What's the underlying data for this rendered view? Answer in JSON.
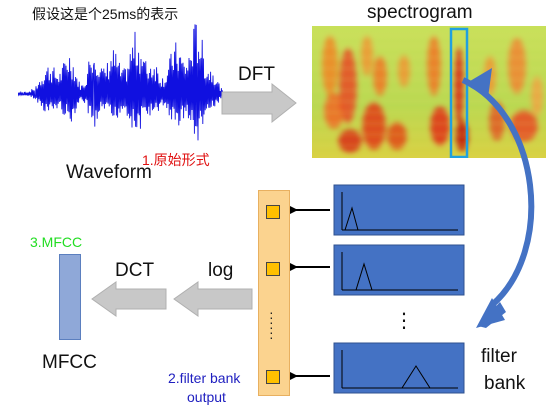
{
  "labels": {
    "waveform_caption": "假设这是个25ms的表示",
    "waveform": "Waveform",
    "step1": "1.原始形式",
    "dft": "DFT",
    "spectrogram": "spectrogram",
    "step3": "3.MFCC",
    "dct": "DCT",
    "log": "log",
    "mfcc": "MFCC",
    "step2_line1": "2.filter bank",
    "step2_line2": "output",
    "filter_line1": "filter",
    "filter_line2": "bank",
    "ellipsis": "⋮"
  },
  "colors": {
    "waveform": "#1010e0",
    "step1": "#e01010",
    "step2": "#2020c0",
    "step3": "#22dd22",
    "arrow_gray": "#c8c8c8",
    "filter_box": "#4472c4",
    "bank_column": "#fbd38f",
    "bank_cell": "#ffc000",
    "mfcc_bar": "#8fa8d8",
    "curve_arrow": "#4472c4",
    "highlight": "#20a0e0"
  }
}
